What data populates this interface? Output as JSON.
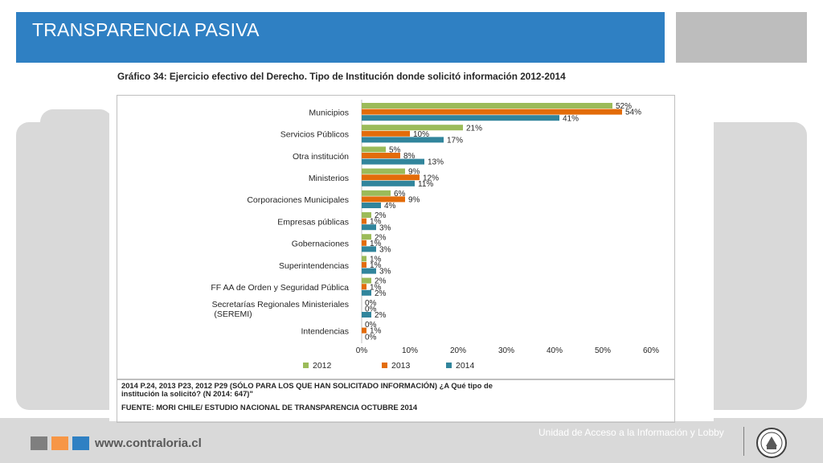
{
  "header": {
    "title": "TRANSPARENCIA PASIVA"
  },
  "colors": {
    "header_blue": "#2f80c3",
    "series_2012": "#9bbb59",
    "series_2013": "#e36c0a",
    "series_2014": "#31859c"
  },
  "chart_data": {
    "type": "bar",
    "orientation": "horizontal",
    "title": "Gráfico 34: Ejercicio efectivo del Derecho. Tipo de Institución donde solicitó información 2012-2014",
    "categories": [
      "Municipios",
      "Servicios Públicos",
      "Otra institución",
      "Ministerios",
      "Corporaciones Municipales",
      "Empresas públicas",
      "Gobernaciones",
      "Superintendencias",
      "FF AA de Orden y Seguridad Pública",
      "Secretarías Regionales Ministeriales (SEREMI)",
      "Intendencias"
    ],
    "series": [
      {
        "name": "2012",
        "values": [
          52,
          21,
          5,
          9,
          6,
          2,
          2,
          1,
          2,
          0,
          0
        ]
      },
      {
        "name": "2013",
        "values": [
          54,
          10,
          8,
          12,
          9,
          1,
          1,
          1,
          1,
          0,
          1
        ]
      },
      {
        "name": "2014",
        "values": [
          41,
          17,
          13,
          11,
          4,
          3,
          3,
          3,
          2,
          2,
          0
        ]
      }
    ],
    "xlim": [
      0,
      60
    ],
    "xticks": [
      "0%",
      "10%",
      "20%",
      "30%",
      "40%",
      "50%",
      "60%"
    ],
    "value_suffix": "%",
    "grid": false,
    "legend_position": "bottom"
  },
  "note": {
    "line1": "2014 P.24, 2013 P23, 2012 P29 (SÓLO PARA LOS QUE HAN SOLICITADO INFORMACIÓN) ¿A Qué tipo de",
    "line2": "institución la solicitó? (N 2014: 647)\"",
    "source": "FUENTE: MORI CHILE/ ESTUDIO NACIONAL DE TRANSPARENCIA OCTUBRE 2014"
  },
  "footer": {
    "url": "www.contraloria.cl",
    "unit": "Unidad de Acceso a la Información y Lobby",
    "squares": [
      "#7f7f7f",
      "#f79646",
      "#2f80c3"
    ],
    "seal_icon": "contraloria-seal-icon"
  }
}
